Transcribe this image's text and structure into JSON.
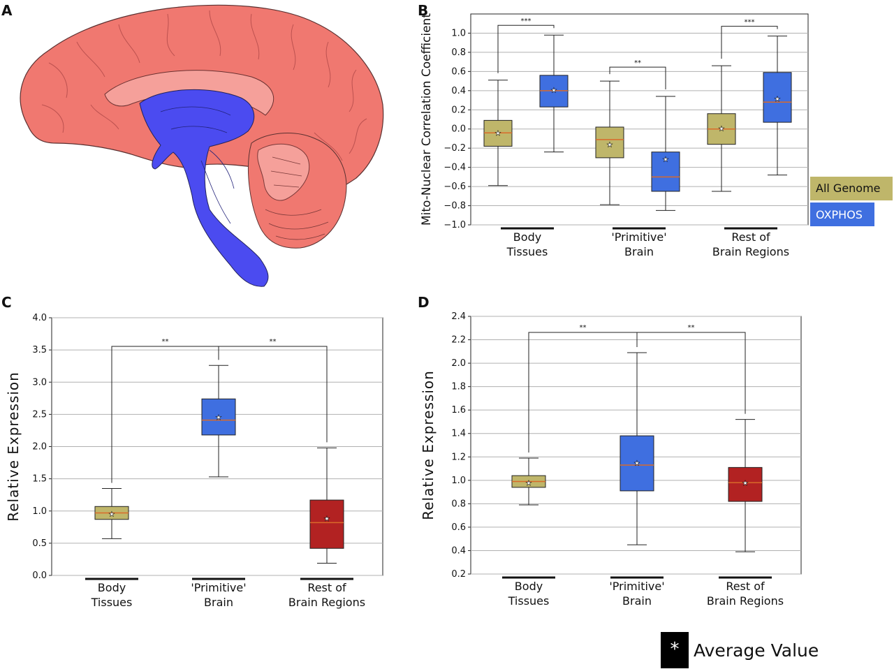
{
  "panels": {
    "A": "A",
    "B": "B",
    "C": "C",
    "D": "D"
  },
  "colors": {
    "brain_pink": "#f07870",
    "brain_inner": "#f5a09a",
    "brainstem_blue": "#4b4bf0",
    "all_genome": "#bfb66a",
    "oxphos": "#3f6fe0",
    "rest_red": "#b22222",
    "median": "#d96a2a",
    "grid": "#b0b0b0"
  },
  "legend": {
    "all_genome": "All Genome",
    "oxphos": "OXPHOS"
  },
  "average_legend": {
    "symbol": "*",
    "label": "Average Value"
  },
  "chart_data": [
    {
      "id": "B",
      "type": "box",
      "ylabel": "Mito-Nuclear Correlation Coefficient",
      "ylim": [
        -1.0,
        1.2
      ],
      "yticks": [
        "1.0",
        "0.8",
        "0.6",
        "0.4",
        "0.2",
        "0.0",
        "−0.2",
        "−0.4",
        "−0.6",
        "−0.8",
        "−1.0"
      ],
      "categories": [
        "Body\nTissues",
        "'Primitive'\nBrain",
        "Rest of\nBrain Regions"
      ],
      "series": [
        {
          "name": "All Genome",
          "boxes": [
            {
              "min": -0.59,
              "q1": -0.18,
              "median": -0.04,
              "q3": 0.09,
              "max": 0.51,
              "mean": -0.04
            },
            {
              "min": -0.79,
              "q1": -0.3,
              "median": -0.11,
              "q3": 0.02,
              "max": 0.5,
              "mean": -0.16
            },
            {
              "min": -0.65,
              "q1": -0.16,
              "median": 0.0,
              "q3": 0.16,
              "max": 0.66,
              "mean": 0.01
            }
          ]
        },
        {
          "name": "OXPHOS",
          "boxes": [
            {
              "min": -0.24,
              "q1": 0.23,
              "median": 0.4,
              "q3": 0.56,
              "max": 0.98,
              "mean": 0.41
            },
            {
              "min": -0.85,
              "q1": -0.65,
              "median": -0.5,
              "q3": -0.24,
              "max": 0.34,
              "mean": -0.31
            },
            {
              "min": -0.48,
              "q1": 0.07,
              "median": 0.28,
              "q3": 0.59,
              "max": 0.97,
              "mean": 0.32
            }
          ]
        }
      ],
      "significance": [
        {
          "label": "***",
          "category": 0
        },
        {
          "label": "**",
          "category": 1
        },
        {
          "label": "***",
          "category": 2
        }
      ],
      "grid": true
    },
    {
      "id": "C",
      "type": "box",
      "ylabel": "Relative Expression",
      "ylim": [
        0.0,
        4.0
      ],
      "yticks": [
        "4.0",
        "3.5",
        "3.0",
        "2.5",
        "2.0",
        "1.5",
        "1.0",
        "0.5",
        "0.0"
      ],
      "categories": [
        "Body\nTissues",
        "'Primitive'\nBrain",
        "Rest of\nBrain Regions"
      ],
      "boxes": [
        {
          "min": 0.57,
          "q1": 0.87,
          "median": 0.97,
          "q3": 1.07,
          "max": 1.35,
          "mean": 0.96
        },
        {
          "min": 1.53,
          "q1": 2.18,
          "median": 2.41,
          "q3": 2.74,
          "max": 3.26,
          "mean": 2.46
        },
        {
          "min": 0.19,
          "q1": 0.42,
          "median": 0.82,
          "q3": 1.17,
          "max": 1.98,
          "mean": 0.89
        }
      ],
      "significance": [
        {
          "label": "**",
          "between": [
            0,
            1
          ]
        },
        {
          "label": "**",
          "between": [
            1,
            2
          ]
        }
      ],
      "grid": true
    },
    {
      "id": "D",
      "type": "box",
      "ylabel": "Relative Expression",
      "ylim": [
        0.2,
        2.4
      ],
      "yticks": [
        "2.4",
        "2.2",
        "2.0",
        "1.8",
        "1.6",
        "1.4",
        "1.2",
        "1.0",
        "0.8",
        "0.6",
        "0.4",
        "0.2"
      ],
      "categories": [
        "Body\nTissues",
        "'Primitive'\nBrain",
        "Rest of\nBrain Regions"
      ],
      "boxes": [
        {
          "min": 0.79,
          "q1": 0.94,
          "median": 0.99,
          "q3": 1.04,
          "max": 1.19,
          "mean": 0.98
        },
        {
          "min": 0.45,
          "q1": 0.91,
          "median": 1.13,
          "q3": 1.38,
          "max": 2.09,
          "mean": 1.15
        },
        {
          "min": 0.39,
          "q1": 0.82,
          "median": 0.98,
          "q3": 1.11,
          "max": 1.52,
          "mean": 0.98
        }
      ],
      "significance": [
        {
          "label": "**",
          "between": [
            0,
            1
          ]
        },
        {
          "label": "**",
          "between": [
            1,
            2
          ]
        }
      ],
      "grid": true
    }
  ]
}
